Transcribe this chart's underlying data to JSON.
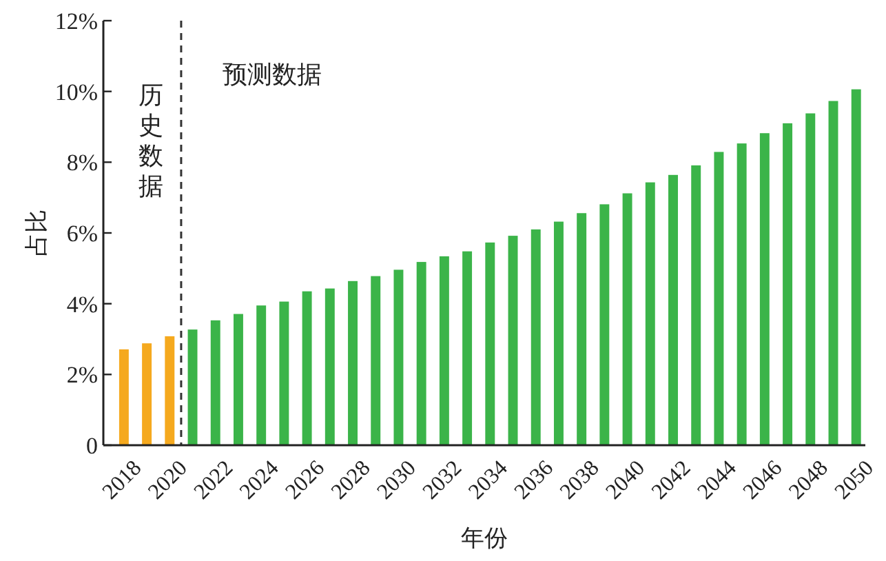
{
  "chart_data": {
    "type": "bar",
    "xlabel": "年份",
    "ylabel": "占比",
    "x": [
      2018,
      2019,
      2020,
      2021,
      2022,
      2023,
      2024,
      2025,
      2026,
      2027,
      2028,
      2029,
      2030,
      2031,
      2032,
      2033,
      2034,
      2035,
      2036,
      2037,
      2038,
      2039,
      2040,
      2041,
      2042,
      2043,
      2044,
      2045,
      2046,
      2047,
      2048,
      2049,
      2050
    ],
    "values": [
      2.71,
      2.88,
      3.08,
      3.27,
      3.53,
      3.71,
      3.95,
      4.06,
      4.35,
      4.43,
      4.64,
      4.78,
      4.96,
      5.18,
      5.34,
      5.48,
      5.73,
      5.92,
      6.1,
      6.32,
      6.56,
      6.81,
      7.12,
      7.43,
      7.64,
      7.91,
      8.29,
      8.53,
      8.82,
      9.1,
      9.38,
      9.73,
      10.06
    ],
    "colors": [
      "#f5a91e",
      "#f5a91e",
      "#f5a91e",
      "#3bb449",
      "#3bb449",
      "#3bb449",
      "#3bb449",
      "#3bb449",
      "#3bb449",
      "#3bb449",
      "#3bb449",
      "#3bb449",
      "#3bb449",
      "#3bb449",
      "#3bb449",
      "#3bb449",
      "#3bb449",
      "#3bb449",
      "#3bb449",
      "#3bb449",
      "#3bb449",
      "#3bb449",
      "#3bb449",
      "#3bb449",
      "#3bb449",
      "#3bb449",
      "#3bb449",
      "#3bb449",
      "#3bb449",
      "#3bb449",
      "#3bb449",
      "#3bb449",
      "#3bb449"
    ],
    "xlim": [
      2017.1,
      2050.4
    ],
    "xticks": [
      2018,
      2020,
      2022,
      2024,
      2026,
      2028,
      2030,
      2032,
      2034,
      2036,
      2038,
      2040,
      2042,
      2044,
      2046,
      2048,
      2050
    ],
    "ylim": [
      0,
      12
    ],
    "yticks": [
      0,
      {
        "value": 2,
        "label": "2%"
      },
      {
        "value": 4,
        "label": "4%"
      },
      {
        "value": 6,
        "label": "6%"
      },
      {
        "value": 8,
        "label": "8%"
      },
      {
        "value": 10,
        "label": "10%"
      },
      {
        "value": 12,
        "label": "12%"
      }
    ],
    "ref_lines": [
      {
        "axis": "x",
        "value": 2020.5,
        "line_style": "dashed",
        "color": "#333333"
      }
    ],
    "annotations": [
      "历史数据",
      "预测数据"
    ],
    "grid": false
  }
}
